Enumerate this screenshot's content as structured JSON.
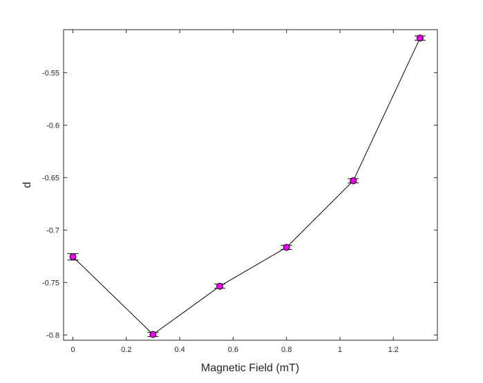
{
  "chart_data": {
    "type": "line",
    "title": "",
    "xlabel": "Magnetic Field (mT)",
    "ylabel": "d",
    "xlim": [
      -0.035,
      1.365
    ],
    "ylim": [
      -0.805,
      -0.509
    ],
    "xticks": [
      0,
      0.2,
      0.4,
      0.6,
      0.8,
      1,
      1.2
    ],
    "xtick_labels": [
      "0",
      "0.2",
      "0.4",
      "0.6",
      "0.8",
      "1",
      "1.2"
    ],
    "yticks": [
      -0.8,
      -0.75,
      -0.7,
      -0.65,
      -0.6,
      -0.55
    ],
    "ytick_labels": [
      "-0.8",
      "-0.75",
      "-0.7",
      "-0.65",
      "-0.6",
      "-0.55"
    ],
    "grid": true,
    "series": [
      {
        "x": [
          0,
          0.3,
          0.55,
          0.8,
          1.05,
          1.3
        ],
        "y": [
          -0.7255,
          -0.7995,
          -0.7535,
          -0.7165,
          -0.653,
          -0.517
        ],
        "error": [
          0.003,
          0.002,
          0.002,
          0.002,
          0.002,
          0.002
        ],
        "color": "#ee00ee",
        "line_color": "#000000",
        "marker": "circle"
      }
    ]
  }
}
